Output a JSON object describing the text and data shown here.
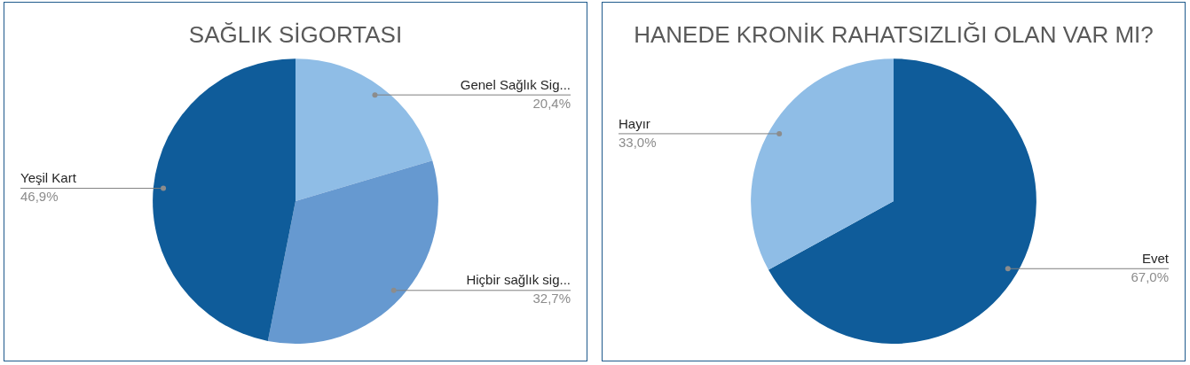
{
  "chart_data": [
    {
      "type": "pie",
      "title": "SAĞLIK SİGORTASI",
      "categories": [
        "Genel Sağlık Sig...",
        "Hiçbir sağlık sig...",
        "Yeşil Kart"
      ],
      "values": [
        20.4,
        32.7,
        46.9
      ],
      "colors": [
        "#8fbde6",
        "#6699d0",
        "#0f5c9a"
      ],
      "value_labels": [
        "20,4%",
        "32,7%",
        "46,9%"
      ]
    },
    {
      "type": "pie",
      "title": "HANEDE KRONİK RAHATSIZLIĞI OLAN VAR MI?",
      "categories": [
        "Evet",
        "Hayır"
      ],
      "values": [
        67.0,
        33.0
      ],
      "colors": [
        "#0f5c9a",
        "#8fbde6"
      ],
      "value_labels": [
        "67,0%",
        "33,0%"
      ]
    }
  ]
}
